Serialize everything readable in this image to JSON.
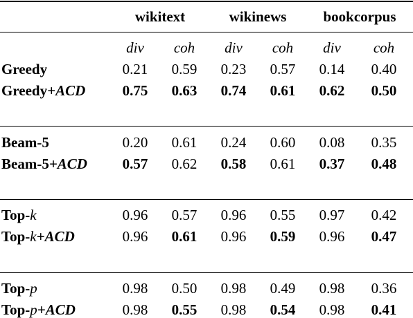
{
  "table": {
    "groups": [
      {
        "label": "wikitext",
        "subcolumns": [
          "div",
          "coh"
        ]
      },
      {
        "label": "wikinews",
        "subcolumns": [
          "div",
          "coh"
        ]
      },
      {
        "label": "bookcorpus",
        "subcolumns": [
          "div",
          "coh"
        ]
      }
    ],
    "blocks": [
      {
        "rows": [
          {
            "method": "Greedy",
            "values": [
              "0.21",
              "0.59",
              "0.23",
              "0.57",
              "0.14",
              "0.40"
            ],
            "bold": [
              false,
              false,
              false,
              false,
              false,
              false
            ]
          },
          {
            "method": "Greedy",
            "suffix": "+ACD",
            "values": [
              "0.75",
              "0.63",
              "0.74",
              "0.61",
              "0.62",
              "0.50"
            ],
            "bold": [
              true,
              true,
              true,
              true,
              true,
              true
            ]
          }
        ]
      },
      {
        "rows": [
          {
            "method": "Beam-5",
            "values": [
              "0.20",
              "0.61",
              "0.24",
              "0.60",
              "0.08",
              "0.35"
            ],
            "bold": [
              false,
              false,
              false,
              false,
              false,
              false
            ]
          },
          {
            "method": "Beam-5",
            "suffix": "+ACD",
            "values": [
              "0.57",
              "0.62",
              "0.58",
              "0.61",
              "0.37",
              "0.48"
            ],
            "bold": [
              true,
              false,
              true,
              false,
              true,
              true
            ]
          }
        ]
      },
      {
        "rows": [
          {
            "method": "Top-",
            "var": "k",
            "values": [
              "0.96",
              "0.57",
              "0.96",
              "0.55",
              "0.97",
              "0.42"
            ],
            "bold": [
              false,
              false,
              false,
              false,
              false,
              false
            ]
          },
          {
            "method": "Top-",
            "var": "k",
            "suffix": "+ACD",
            "values": [
              "0.96",
              "0.61",
              "0.96",
              "0.59",
              "0.96",
              "0.47"
            ],
            "bold": [
              false,
              true,
              false,
              true,
              false,
              true
            ]
          }
        ]
      },
      {
        "rows": [
          {
            "method": "Top-",
            "var": "p",
            "values": [
              "0.98",
              "0.50",
              "0.98",
              "0.49",
              "0.98",
              "0.36"
            ],
            "bold": [
              false,
              false,
              false,
              false,
              false,
              false
            ]
          },
          {
            "method": "Top-",
            "var": "p",
            "suffix": "+ACD",
            "values": [
              "0.98",
              "0.55",
              "0.98",
              "0.54",
              "0.98",
              "0.41"
            ],
            "bold": [
              false,
              true,
              false,
              true,
              false,
              true
            ]
          }
        ]
      }
    ]
  }
}
